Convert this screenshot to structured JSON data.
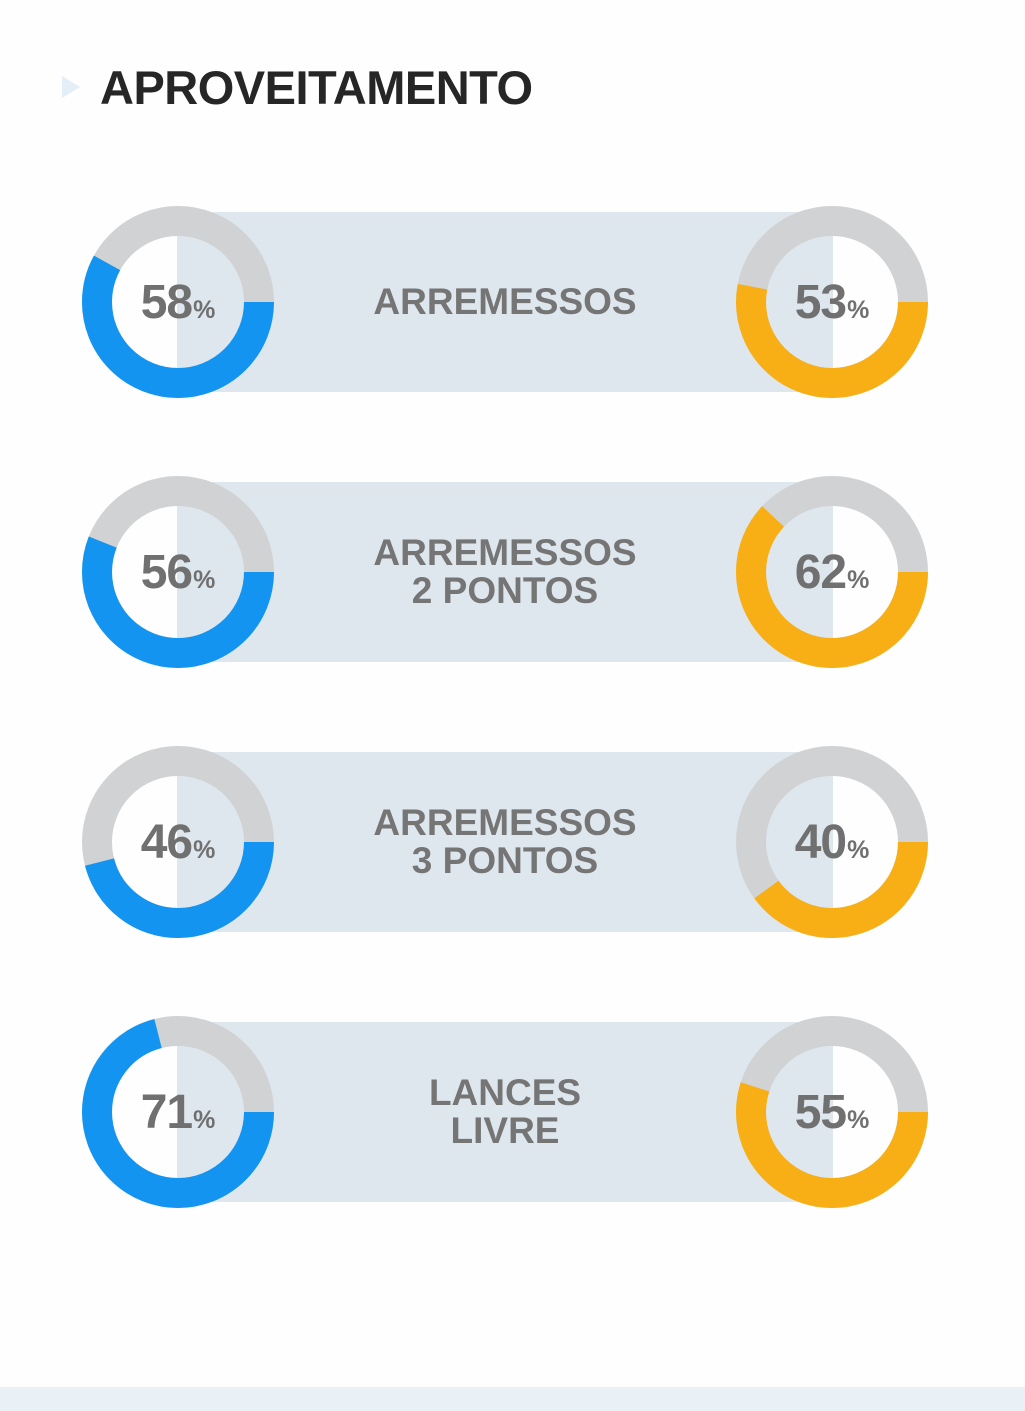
{
  "header": {
    "title": "APROVEITAMENTO"
  },
  "colors": {
    "left": "#1394f0",
    "right": "#f8ae15",
    "track": "#d1d2d4",
    "band": "#dfe7ee",
    "text": "#757575"
  },
  "chart_data": {
    "type": "donut",
    "title": "APROVEITAMENTO",
    "unit": "%",
    "categories": [
      "ARREMESSOS",
      "ARREMESSOS\n2 PONTOS",
      "ARREMESSOS\n3 PONTOS",
      "LANCES\nLIVRE"
    ],
    "series": [
      {
        "values": [
          58,
          56,
          46,
          71
        ],
        "color": "#1394f0"
      },
      {
        "values": [
          53,
          62,
          40,
          55
        ],
        "color": "#f8ae15"
      }
    ]
  }
}
